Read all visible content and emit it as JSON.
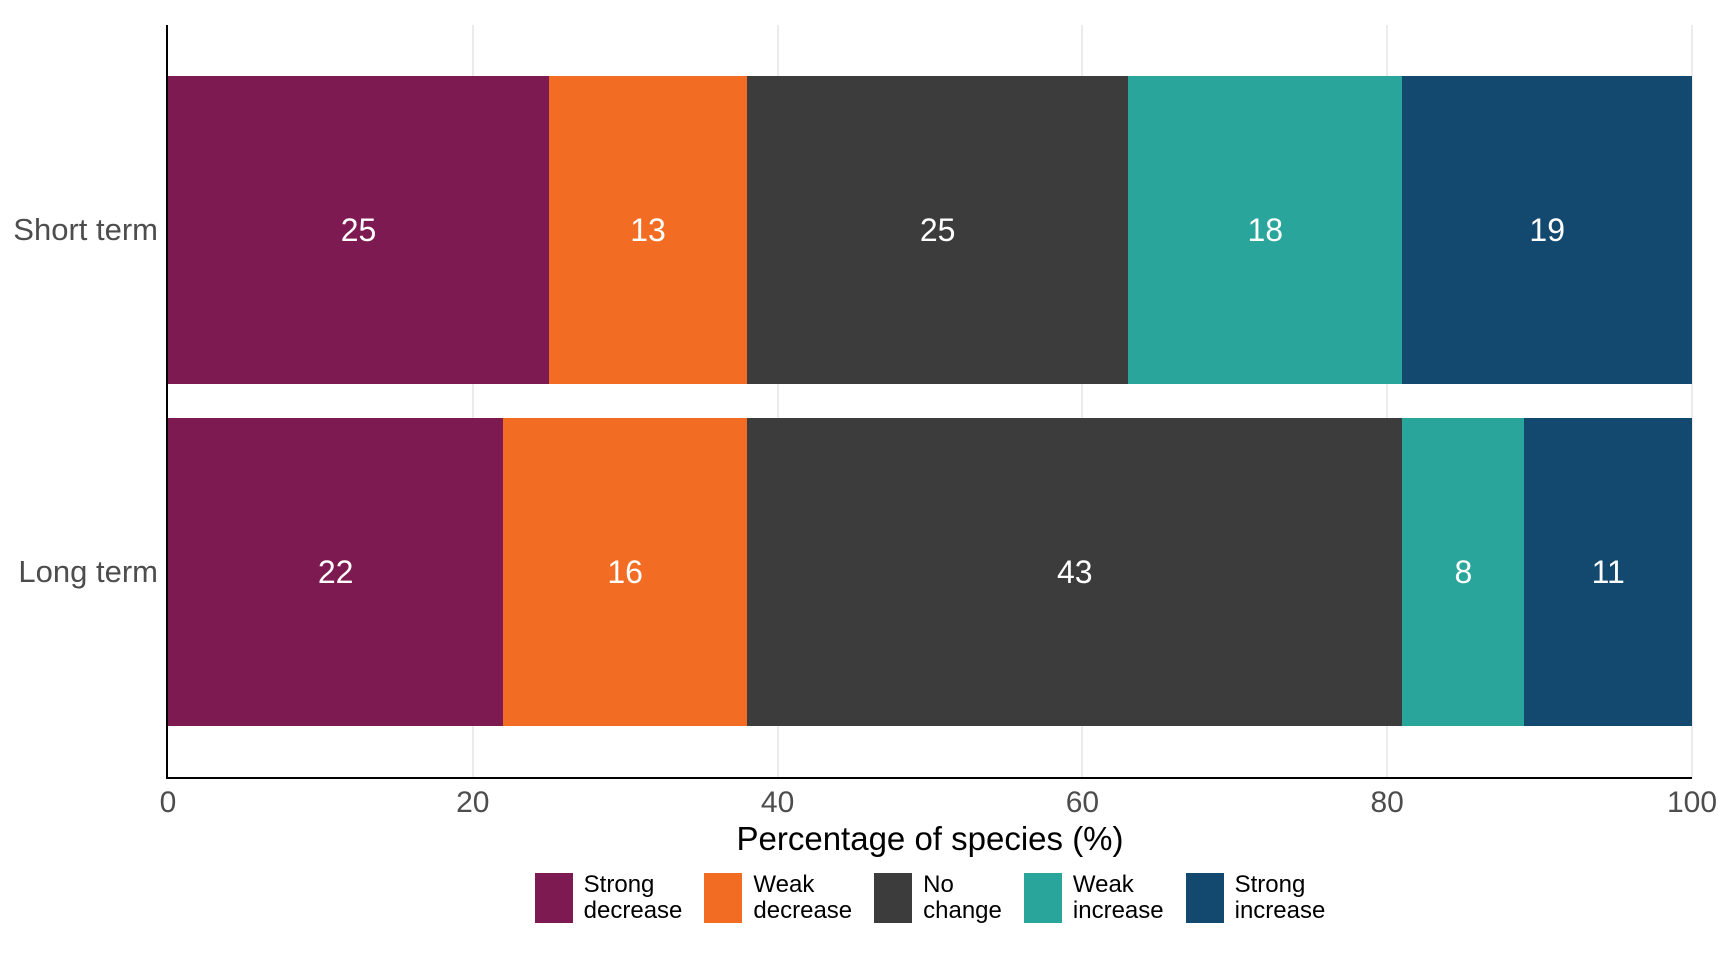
{
  "chart_data": {
    "type": "bar",
    "orientation": "horizontal",
    "stacked": true,
    "title": "",
    "xlabel": "Percentage of species (%)",
    "ylabel": "",
    "xlim": [
      0,
      100
    ],
    "xticks": [
      "0",
      "20",
      "40",
      "60",
      "80",
      "100"
    ],
    "xtick_values": [
      0,
      20,
      40,
      60,
      80,
      100
    ],
    "grid": "vertical-major-only",
    "legend_position": "bottom-center",
    "categories": [
      "Short term",
      "Long term"
    ],
    "series": [
      {
        "name": "Strong decrease",
        "color": "#7d1a51",
        "values": [
          25,
          22
        ]
      },
      {
        "name": "Weak decrease",
        "color": "#f26d23",
        "values": [
          13,
          16
        ]
      },
      {
        "name": "No change",
        "color": "#3c3c3c",
        "values": [
          25,
          43
        ]
      },
      {
        "name": "Weak increase",
        "color": "#2aa59b",
        "values": [
          18,
          8
        ]
      },
      {
        "name": "Strong increase",
        "color": "#14496f",
        "values": [
          19,
          11
        ]
      }
    ],
    "bar_value_labels": {
      "Short term": [
        25,
        13,
        25,
        18,
        19
      ],
      "Long term": [
        22,
        16,
        43,
        8,
        11
      ]
    },
    "legend_labels_two_line": [
      [
        "Strong",
        "decrease"
      ],
      [
        "Weak",
        "decrease"
      ],
      [
        "No",
        "change"
      ],
      [
        "Weak",
        "increase"
      ],
      [
        "Strong",
        "increase"
      ]
    ],
    "colors": {
      "axis_text": "#4d4d4d",
      "axis_title_text": "#000000",
      "bar_label_text": "#ffffff",
      "axis_line": "#000000",
      "gridline": "#ebebeb",
      "background": "#ffffff"
    }
  }
}
